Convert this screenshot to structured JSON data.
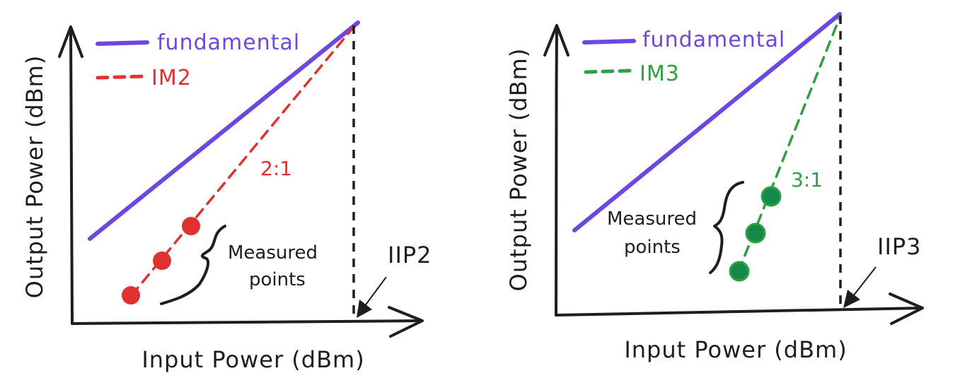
{
  "colors": {
    "fundamental": "#6c47e0",
    "im2": "#e03131",
    "im3": "#2f9e44",
    "im3_point_fill": "#138a4a",
    "ink": "#1e1e1e"
  },
  "left": {
    "y_axis_label": "Output Power (dBm)",
    "x_axis_label": "Input Power (dBm)",
    "legend": {
      "fundamental": "fundamental",
      "im": "IM2"
    },
    "slope_label": "2:1",
    "measured_label_line1": "Measured",
    "measured_label_line2": "points",
    "intercept_label": "IIP2"
  },
  "right": {
    "y_axis_label": "Output Power (dBm)",
    "x_axis_label": "Input Power (dBm)",
    "legend": {
      "fundamental": "fundamental",
      "im": "IM3"
    },
    "slope_label": "3:1",
    "measured_label_line1": "Measured",
    "measured_label_line2": "points",
    "intercept_label": "IIP3"
  }
}
